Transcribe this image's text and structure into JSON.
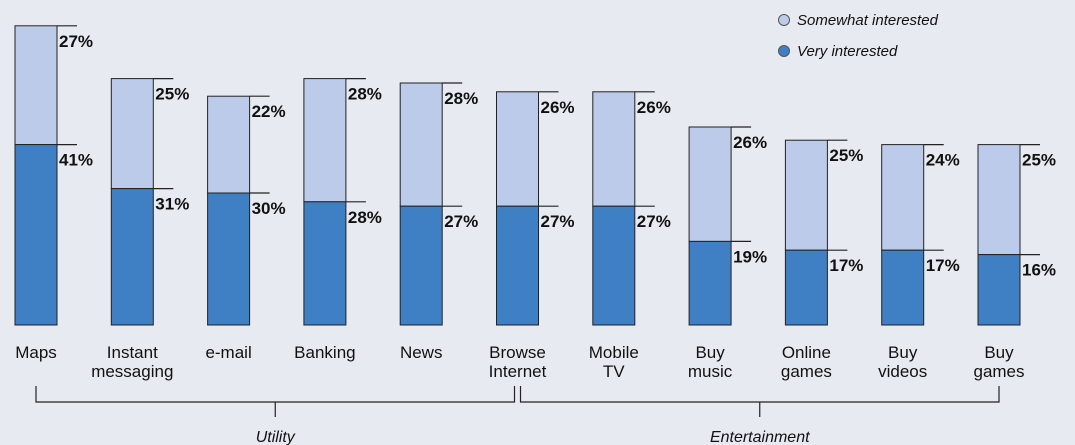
{
  "chart_data": {
    "type": "bar",
    "stacked": true,
    "categories": [
      [
        "Maps"
      ],
      [
        "Instant",
        "messaging"
      ],
      [
        "e-mail"
      ],
      [
        "Banking"
      ],
      [
        "News"
      ],
      [
        "Browse",
        "Internet"
      ],
      [
        "Mobile",
        "TV"
      ],
      [
        "Buy",
        "music"
      ],
      [
        "Online",
        "games"
      ],
      [
        "Buy",
        "videos"
      ],
      [
        "Buy",
        "games"
      ]
    ],
    "series": [
      {
        "name": "Very interested",
        "color": "#3f7fc4",
        "values": [
          41,
          31,
          30,
          28,
          27,
          27,
          27,
          19,
          17,
          17,
          16
        ],
        "labels": [
          "41%",
          "31%",
          "30%",
          "28%",
          "27%",
          "27%",
          "27%",
          "19%",
          "17%",
          "17%",
          "16%"
        ]
      },
      {
        "name": "Somewhat interested",
        "color": "#bccbea",
        "values": [
          27,
          25,
          22,
          28,
          28,
          26,
          26,
          26,
          25,
          24,
          25
        ],
        "labels": [
          "27%",
          "25%",
          "22%",
          "28%",
          "28%",
          "26%",
          "26%",
          "26%",
          "25%",
          "24%",
          "25%"
        ]
      }
    ],
    "groups": [
      {
        "label": "Utility",
        "from": 0,
        "to": 5
      },
      {
        "label": "Entertainment",
        "from": 5,
        "to": 10
      }
    ],
    "legend": {
      "placement": "top-right",
      "items": [
        "Somewhat interested",
        "Very interested"
      ]
    },
    "ylim": [
      0,
      70
    ],
    "grid": false,
    "title": "",
    "xlabel": "",
    "ylabel": ""
  }
}
